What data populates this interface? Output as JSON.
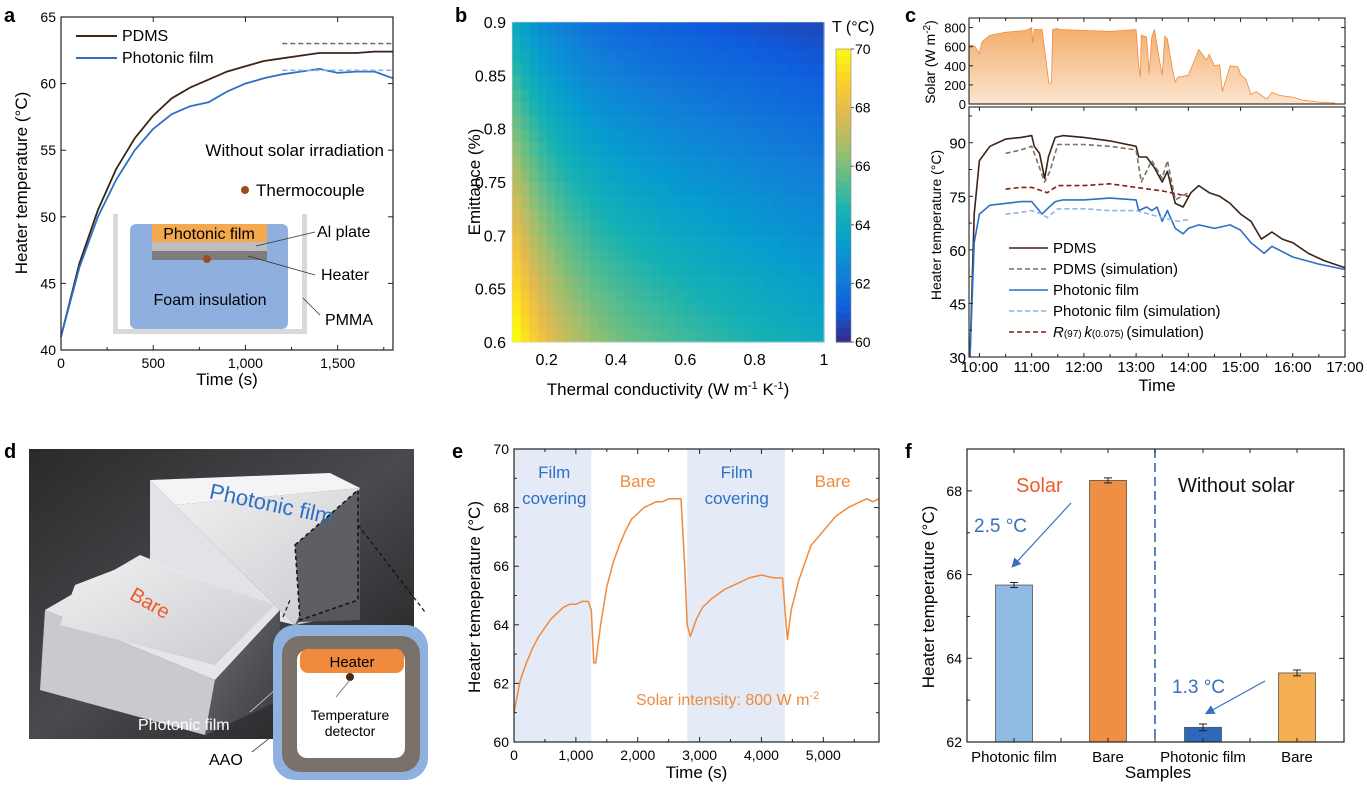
{
  "panel_labels": {
    "a": "a",
    "b": "b",
    "c": "c",
    "d": "d",
    "e": "e",
    "f": "f"
  },
  "colors": {
    "pdms": "#3b2418",
    "photonic": "#2e6fc6",
    "pdms_sim": "#7a7268",
    "photonic_sim": "#8fb3e3",
    "r97_sim": "#8b1a1a",
    "orange": "#f08a3c",
    "solar_fill": "#f5b67a",
    "bar_photonic_solar": "#8fbbe4",
    "bar_bare_solar": "#ef8e45",
    "bar_photonic_nosolar": "#2e68b8",
    "bar_bare_nosolar": "#f5ae52",
    "shade": "#e4ebf6"
  },
  "chart_data": [
    {
      "id": "a",
      "type": "line",
      "xlabel": "Time (s)",
      "ylabel": "Heater temperature (°C)",
      "xlim": [
        0,
        1800
      ],
      "ylim": [
        40,
        65
      ],
      "xticks": [
        0,
        500,
        1000,
        1500
      ],
      "xtick_labels": [
        "0",
        "500",
        "1,000",
        "1,500"
      ],
      "yticks": [
        40,
        45,
        50,
        55,
        60,
        65
      ],
      "series": [
        {
          "name": "PDMS",
          "style": "solid",
          "color_key": "pdms",
          "x": [
            0,
            100,
            200,
            300,
            400,
            500,
            600,
            700,
            800,
            900,
            1000,
            1100,
            1200,
            1300,
            1400,
            1500,
            1600,
            1700,
            1800
          ],
          "y": [
            41,
            46.5,
            50.5,
            53.6,
            55.9,
            57.6,
            58.9,
            59.7,
            60.3,
            60.9,
            61.3,
            61.7,
            61.9,
            62.1,
            62.3,
            62.3,
            62.3,
            62.4,
            62.4
          ]
        },
        {
          "name": "Photonic film",
          "style": "solid",
          "color_key": "photonic",
          "x": [
            0,
            100,
            200,
            300,
            400,
            500,
            600,
            700,
            800,
            900,
            1000,
            1100,
            1200,
            1300,
            1400,
            1500,
            1600,
            1700,
            1800
          ],
          "y": [
            41,
            46.2,
            50,
            52.8,
            55,
            56.6,
            57.7,
            58.3,
            58.6,
            59.4,
            60,
            60.4,
            60.7,
            60.9,
            61.1,
            60.8,
            60.9,
            60.9,
            60.4
          ]
        },
        {
          "name": "PDMS (simulation)",
          "style": "dashed",
          "color_key": "pdms_sim",
          "legend": false,
          "x": [
            1200,
            1800
          ],
          "y": [
            63,
            63
          ]
        },
        {
          "name": "Photonic film (simulation)",
          "style": "dashed",
          "color_key": "photonic_sim",
          "legend": false,
          "x": [
            1200,
            1800
          ],
          "y": [
            61,
            61
          ]
        }
      ],
      "annotations": {
        "condition": "Without solar irradiation",
        "thermocouple": "Thermocouple",
        "inset_photonic_film": "Photonic film",
        "inset_al_plate": "Al plate",
        "inset_heater": "Heater",
        "inset_foam": "Foam insulation",
        "inset_pmma": "PMMA"
      }
    },
    {
      "id": "b",
      "type": "heatmap",
      "xlabel": "Thermal conductivity (W m⁻¹ K⁻¹)",
      "ylabel": "Emittance (%)",
      "xlim": [
        0.1,
        1
      ],
      "ylim": [
        0.6,
        0.9
      ],
      "xticks": [
        0.2,
        0.4,
        0.6,
        0.8,
        1
      ],
      "xtick_labels": [
        "0.2",
        "0.4",
        "0.6",
        "0.8",
        "1"
      ],
      "yticks": [
        0.6,
        0.65,
        0.7,
        0.75,
        0.8,
        0.85,
        0.9
      ],
      "ytick_labels": [
        "0.6",
        "0.65",
        "0.7",
        "0.75",
        "0.8",
        "0.85",
        "0.9"
      ],
      "colorbar": {
        "title": "T (°C)",
        "range": [
          60,
          70
        ],
        "ticks": [
          60,
          62,
          64,
          66,
          68,
          70
        ],
        "colormap": "parula"
      },
      "model": "T ≈ corner values: (0.1,0.6)=70, (0.1,0.9)=65.5, (1,0.6)=65.5, (1,0.9)=61"
    },
    {
      "id": "c_top",
      "type": "area",
      "ylabel": "Solar (W m⁻²)",
      "xlim": [
        9.8,
        17.0
      ],
      "ylim": [
        0,
        900
      ],
      "yticks": [
        0,
        200,
        400,
        600,
        800
      ],
      "x": [
        9.8,
        9.9,
        10.0,
        10.05,
        10.2,
        10.5,
        10.9,
        11.0,
        11.02,
        11.05,
        11.2,
        11.33,
        11.38,
        11.4,
        11.48,
        11.55,
        12.0,
        12.5,
        13.0,
        13.05,
        13.08,
        13.1,
        13.2,
        13.25,
        13.3,
        13.35,
        13.45,
        13.5,
        13.55,
        13.6,
        13.7,
        13.75,
        13.8,
        14.0,
        14.2,
        14.35,
        14.4,
        14.5,
        14.6,
        14.65,
        14.8,
        14.95,
        15.0,
        15.1,
        15.2,
        15.3,
        15.5,
        15.6,
        15.75,
        16.0,
        16.2,
        16.5,
        16.8
      ],
      "y": [
        620,
        610,
        530,
        650,
        720,
        750,
        770,
        800,
        640,
        780,
        780,
        220,
        220,
        780,
        790,
        780,
        770,
        760,
        780,
        400,
        280,
        720,
        700,
        320,
        700,
        780,
        450,
        300,
        710,
        680,
        350,
        230,
        280,
        300,
        570,
        460,
        520,
        400,
        410,
        130,
        400,
        390,
        310,
        260,
        100,
        130,
        50,
        120,
        90,
        70,
        40,
        20,
        10
      ]
    },
    {
      "id": "c_bottom",
      "type": "line",
      "xlabel": "Time",
      "ylabel": "Heater temperature (°C)",
      "xlim": [
        9.8,
        17.0
      ],
      "ylim": [
        30,
        100
      ],
      "xticks": [
        10,
        11,
        12,
        13,
        14,
        15,
        16,
        17
      ],
      "xtick_labels": [
        "10:00",
        "11:00",
        "12:00",
        "13:00",
        "14:00",
        "15:00",
        "16:00",
        "17:00"
      ],
      "yticks": [
        30,
        45,
        60,
        75,
        90
      ],
      "series": [
        {
          "name": "PDMS",
          "style": "solid",
          "color_key": "pdms",
          "x": [
            9.82,
            9.9,
            10.0,
            10.2,
            10.5,
            10.8,
            11.0,
            11.05,
            11.15,
            11.25,
            11.32,
            11.45,
            11.6,
            12.0,
            12.5,
            13.0,
            13.05,
            13.2,
            13.35,
            13.5,
            13.6,
            13.75,
            13.9,
            14.05,
            14.2,
            14.4,
            14.6,
            14.8,
            15.0,
            15.2,
            15.4,
            15.6,
            15.8,
            16.0,
            16.3,
            16.6,
            17.0
          ],
          "y": [
            30,
            70,
            85,
            89,
            91,
            91.5,
            92,
            89,
            87,
            80,
            86,
            91.5,
            92,
            91.5,
            90.5,
            89,
            86,
            86,
            83,
            79,
            82,
            73,
            72,
            76,
            78,
            76,
            75,
            73,
            70,
            68,
            63,
            65,
            63,
            62,
            59,
            57,
            55
          ]
        },
        {
          "name": "PDMS (simulation)",
          "style": "dashed",
          "color_key": "pdms_sim",
          "x": [
            10.5,
            10.8,
            11.0,
            11.05,
            11.25,
            11.35,
            11.5,
            12.0,
            12.5,
            13.0,
            13.1,
            13.3,
            13.5,
            13.6,
            13.75,
            14.0
          ],
          "y": [
            87,
            88,
            89,
            87,
            79,
            82,
            89.5,
            89.5,
            89,
            88,
            79,
            85,
            80,
            85,
            74,
            76
          ]
        },
        {
          "name": "Photonic film",
          "style": "solid",
          "color_key": "photonic",
          "x": [
            9.82,
            9.9,
            10.0,
            10.2,
            10.5,
            10.8,
            11.0,
            11.2,
            11.3,
            11.45,
            11.6,
            12.0,
            12.5,
            13.0,
            13.05,
            13.2,
            13.3,
            13.4,
            13.5,
            13.6,
            13.75,
            13.9,
            14.0,
            14.2,
            14.5,
            14.8,
            15.0,
            15.2,
            15.45,
            15.6,
            16.0,
            16.5,
            17.0
          ],
          "y": [
            30,
            62,
            70,
            72.5,
            73,
            73.5,
            73.5,
            70,
            71.5,
            73.5,
            74,
            74,
            74.5,
            74,
            71,
            72,
            71,
            72,
            68,
            71,
            66,
            64.5,
            66,
            67,
            66,
            67,
            65.5,
            62,
            59,
            61,
            58,
            56,
            54.5
          ]
        },
        {
          "name": "Photonic film (simulation)",
          "style": "dashed",
          "color_key": "photonic_sim",
          "x": [
            10.5,
            10.8,
            11.0,
            11.2,
            11.3,
            11.5,
            12.0,
            12.5,
            13.0,
            13.5,
            13.8,
            14.0
          ],
          "y": [
            70,
            70.5,
            71,
            70,
            69,
            71.5,
            71.5,
            71,
            71,
            69,
            68,
            68.5
          ]
        },
        {
          "name": "R(97) k(0.075) (simulation)",
          "style": "dashed",
          "color_key": "r97_sim",
          "x": [
            10.5,
            10.8,
            11.0,
            11.3,
            11.5,
            12.0,
            12.5,
            13.0,
            13.5,
            14.0
          ],
          "y": [
            77,
            77.5,
            77.5,
            76,
            78,
            78,
            78.5,
            77.5,
            76.5,
            75
          ]
        }
      ],
      "legend_labels": [
        "PDMS",
        "PDMS (simulation)",
        "Photonic film",
        "Photonic film (simulation)"
      ],
      "legend_r97": {
        "r": "R",
        "r_sub": "(97)",
        "k": "k",
        "k_sub": "(0.075)",
        "tail": "(simulation)"
      }
    },
    {
      "id": "e",
      "type": "line",
      "xlabel": "Time (s)",
      "ylabel": "Heater temeperature (°C)",
      "xlim": [
        0,
        5900
      ],
      "ylim": [
        60,
        70
      ],
      "xticks": [
        0,
        1000,
        2000,
        3000,
        4000,
        5000
      ],
      "xtick_labels": [
        "0",
        "1,000",
        "2,000",
        "3,000",
        "4,000",
        "5,000"
      ],
      "yticks": [
        60,
        62,
        64,
        66,
        68,
        70
      ],
      "shaded_regions": [
        [
          0,
          1250
        ],
        [
          2800,
          4380
        ]
      ],
      "region_labels": [
        {
          "x": 650,
          "lines": [
            "Film",
            "covering"
          ],
          "color_key": "photonic"
        },
        {
          "x": 2000,
          "lines": [
            "Bare"
          ],
          "color_key": "orange"
        },
        {
          "x": 3600,
          "lines": [
            "Film",
            "covering"
          ],
          "color_key": "photonic"
        },
        {
          "x": 5150,
          "lines": [
            "Bare"
          ],
          "color_key": "orange"
        }
      ],
      "annotation": {
        "text": "Solar intensity: 800 W m",
        "sup": "-2"
      },
      "series": [
        {
          "name": "Heater temperature",
          "color_key": "orange",
          "x": [
            0,
            100,
            200,
            300,
            400,
            500,
            600,
            700,
            800,
            900,
            1000,
            1100,
            1200,
            1250,
            1290,
            1320,
            1400,
            1500,
            1600,
            1700,
            1800,
            1900,
            2000,
            2100,
            2200,
            2300,
            2400,
            2500,
            2600,
            2700,
            2760,
            2800,
            2850,
            2950,
            3050,
            3200,
            3400,
            3600,
            3800,
            4000,
            4200,
            4340,
            4380,
            4420,
            4480,
            4600,
            4800,
            5000,
            5200,
            5400,
            5600,
            5700,
            5800,
            5900
          ],
          "y": [
            61,
            62.1,
            62.7,
            63.2,
            63.6,
            63.9,
            64.2,
            64.4,
            64.6,
            64.7,
            64.7,
            64.8,
            64.8,
            64.5,
            62.7,
            62.7,
            64.0,
            65.3,
            66.1,
            66.7,
            67.2,
            67.6,
            67.8,
            68.0,
            68.1,
            68.2,
            68.2,
            68.3,
            68.3,
            68.3,
            66.0,
            64.0,
            63.6,
            64.2,
            64.6,
            64.9,
            65.2,
            65.4,
            65.6,
            65.7,
            65.6,
            65.6,
            64.5,
            63.5,
            64.5,
            65.5,
            66.7,
            67.2,
            67.7,
            68.0,
            68.2,
            68.3,
            68.2,
            68.3
          ]
        }
      ]
    },
    {
      "id": "f",
      "type": "bar",
      "xlabel": "Samples",
      "ylabel": "Heater temperature (°C)",
      "ylim": [
        62,
        69
      ],
      "yticks": [
        62,
        64,
        66,
        68
      ],
      "categories": [
        "Photonic film",
        "Bare",
        "Photonic film",
        "Bare"
      ],
      "values": [
        65.75,
        68.25,
        62.35,
        63.65
      ],
      "errors": [
        0.06,
        0.06,
        0.08,
        0.07
      ],
      "bar_color_keys": [
        "bar_photonic_solar",
        "bar_bare_solar",
        "bar_photonic_nosolar",
        "bar_bare_nosolar"
      ],
      "group_labels": {
        "solar": "Solar",
        "without_solar": "Without solar"
      },
      "deltas": [
        {
          "text": "2.5 °C",
          "value": 2.5
        },
        {
          "text": "1.3 °C",
          "value": 1.3
        }
      ]
    }
  ],
  "panel_d": {
    "box_photonic_label": "Photonic film",
    "box_bare_label": "Bare",
    "photonic_film_callout": "Photonic film",
    "aao_callout": "AAO",
    "heater_label": "Heater",
    "detector_line1": "Temperature",
    "detector_line2": "detector"
  }
}
